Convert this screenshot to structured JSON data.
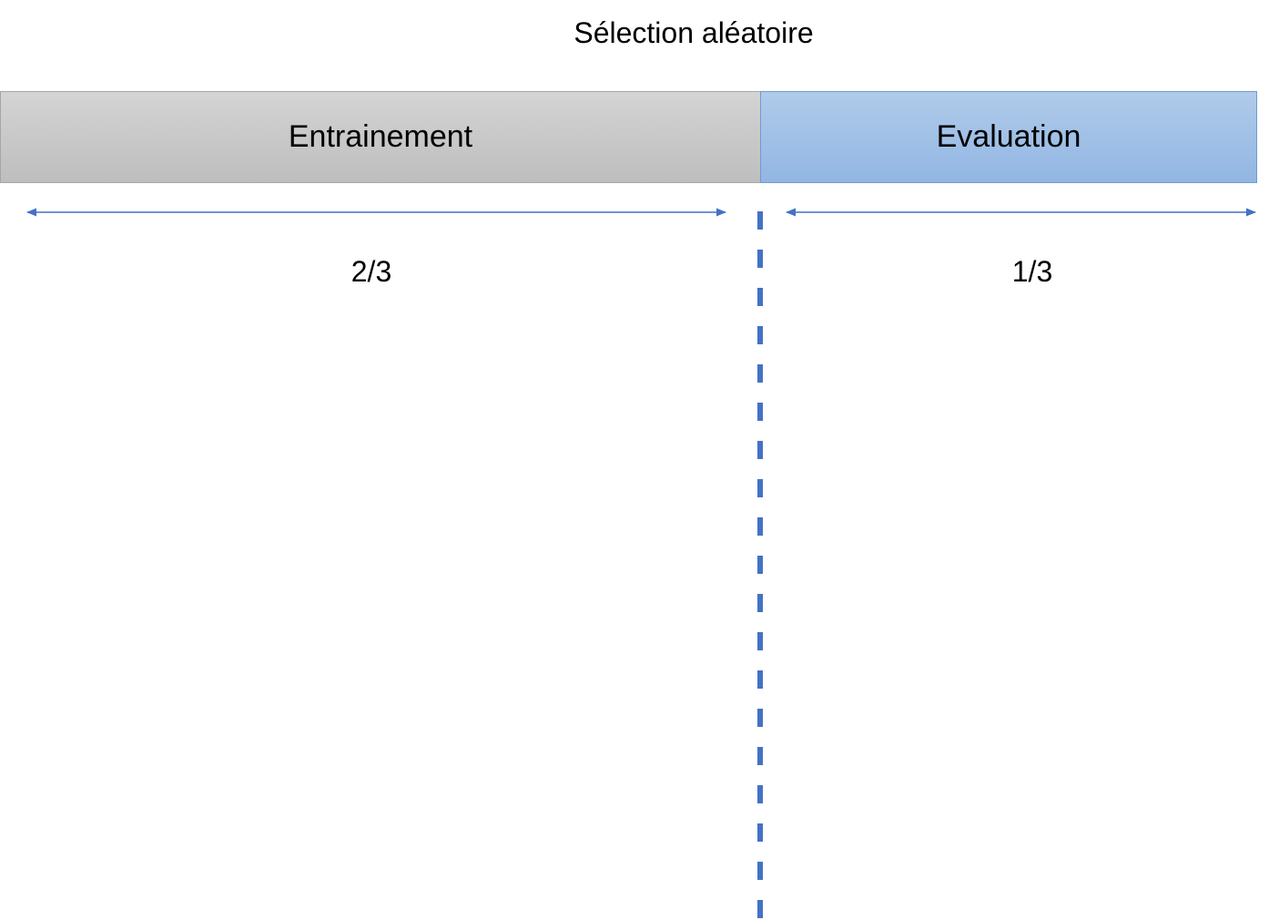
{
  "diagram": {
    "title": "Sélection aléatoire",
    "segments": [
      {
        "label": "Entrainement",
        "fraction_label": "2/3",
        "share": 0.6667,
        "color": "#c8c8c8"
      },
      {
        "label": "Evaluation",
        "fraction_label": "1/3",
        "share": 0.3333,
        "color": "#9dbde6"
      }
    ],
    "accent_color": "#4472c4"
  }
}
